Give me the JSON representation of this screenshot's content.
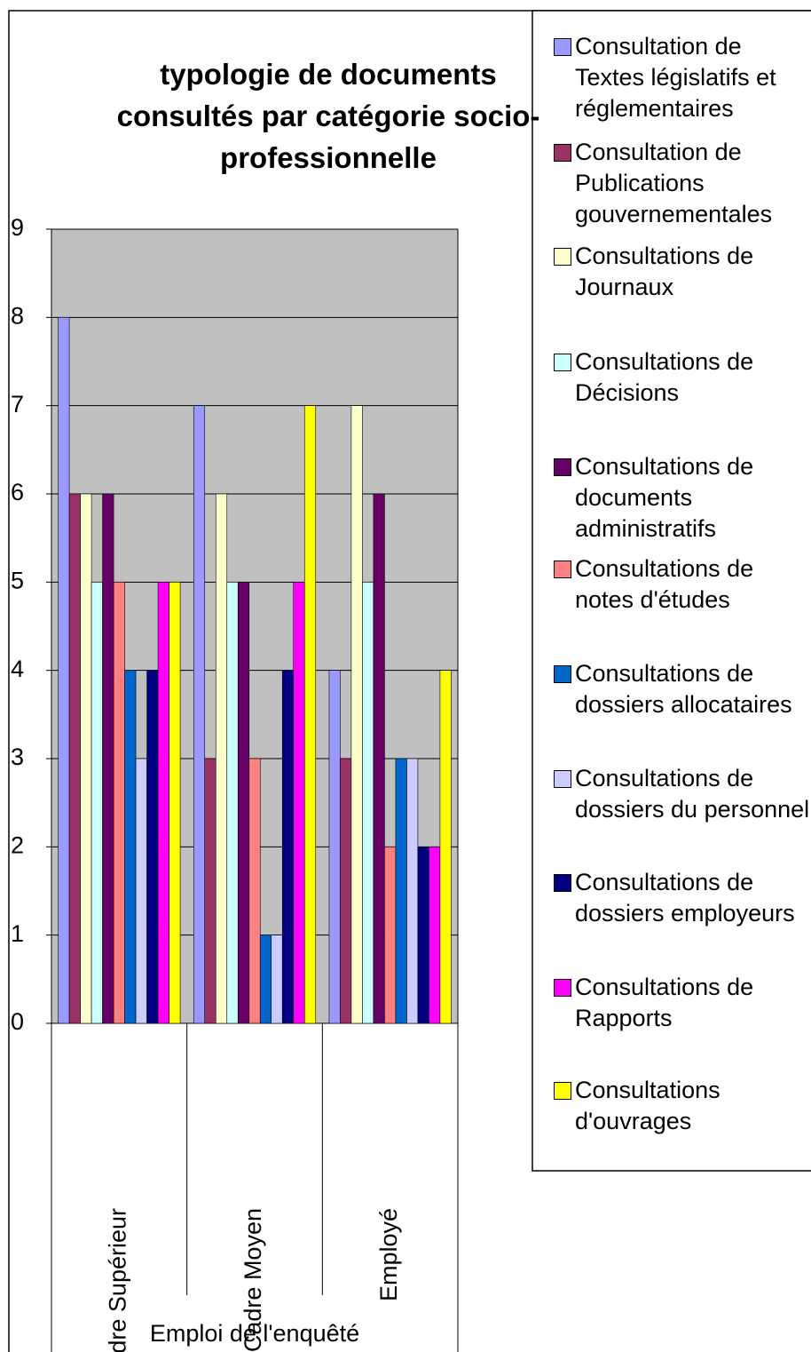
{
  "chart_data": {
    "type": "bar",
    "title": "typologie de documents consultés par catégorie socio-professionnelle",
    "x_label": "Emploi de l'enquêté",
    "categories": [
      "Cadre Supérieur",
      "Cadre Moyen",
      "Employé"
    ],
    "series": [
      {
        "name": "Consultation de Textes législatifs et réglementaires",
        "color": "#9999FF",
        "values": [
          8,
          7,
          4
        ]
      },
      {
        "name": "Consultation de Publications gouvernementales",
        "color": "#993366",
        "values": [
          6,
          3,
          3
        ]
      },
      {
        "name": "Consultations de Journaux",
        "color": "#FFFFCC",
        "values": [
          6,
          6,
          7
        ]
      },
      {
        "name": "Consultations de Décisions",
        "color": "#CCFFFF",
        "values": [
          5,
          5,
          5
        ]
      },
      {
        "name": "Consultations de documents administratifs",
        "color": "#660066",
        "values": [
          6,
          5,
          6
        ]
      },
      {
        "name": "Consultations de notes d'études",
        "color": "#FF8080",
        "values": [
          5,
          3,
          2
        ]
      },
      {
        "name": "Consultations de dossiers allocataires",
        "color": "#0066CC",
        "values": [
          4,
          1,
          3
        ]
      },
      {
        "name": "Consultations de dossiers du personnel",
        "color": "#CCCCFF",
        "values": [
          3,
          1,
          3
        ]
      },
      {
        "name": "Consultations de dossiers employeurs",
        "color": "#000080",
        "values": [
          4,
          4,
          2
        ]
      },
      {
        "name": "Consultations de Rapports",
        "color": "#FF00FF",
        "values": [
          5,
          5,
          2
        ]
      },
      {
        "name": "Consultations d'ouvrages",
        "color": "#FFFF00",
        "values": [
          5,
          7,
          4
        ]
      }
    ],
    "ylim": [
      0,
      9
    ],
    "yticks": [
      0,
      1,
      2,
      3,
      4,
      5,
      6,
      7,
      8,
      9
    ],
    "grid": true,
    "legend": "right"
  }
}
